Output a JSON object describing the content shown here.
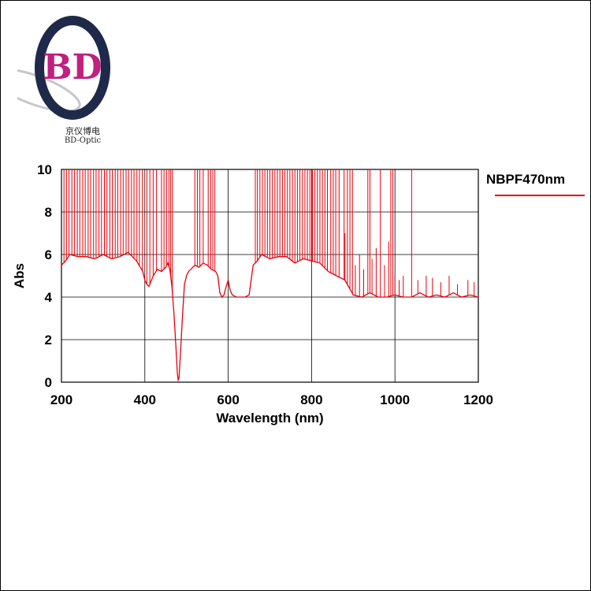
{
  "brand": {
    "logo_text": "BD",
    "name_cn": "京仪博电",
    "name_en": "BD-Optic"
  },
  "colors": {
    "series": "#e8000b",
    "grid": "#000000",
    "logo_ring": "#1f2a4a"
  },
  "chart_data": {
    "type": "line",
    "title": "",
    "xlabel": "Wavelength (nm)",
    "ylabel": "Abs",
    "xlim": [
      200,
      1200
    ],
    "ylim": [
      0,
      10
    ],
    "xticks": [
      "200",
      "400",
      "600",
      "800",
      "1000",
      "1200"
    ],
    "yticks": [
      "0",
      "2",
      "4",
      "6",
      "8",
      "10"
    ],
    "grid": true,
    "legend_position": "top-right",
    "series": [
      {
        "name": "NBPF470nm",
        "color": "#e8000b",
        "x": [
          200,
          210,
          220,
          240,
          260,
          280,
          300,
          320,
          340,
          360,
          380,
          395,
          400,
          405,
          410,
          420,
          430,
          440,
          450,
          455,
          460,
          465,
          470,
          475,
          478,
          480,
          482,
          485,
          490,
          495,
          500,
          505,
          510,
          520,
          530,
          540,
          550,
          560,
          570,
          575,
          580,
          585,
          590,
          595,
          600,
          605,
          610,
          620,
          630,
          640,
          650,
          655,
          660,
          670,
          680,
          700,
          720,
          740,
          760,
          780,
          800,
          820,
          840,
          860,
          880,
          900,
          920,
          940,
          960,
          980,
          1000,
          1020,
          1040,
          1060,
          1080,
          1100,
          1120,
          1140,
          1160,
          1180,
          1200
        ],
        "values": [
          5.5,
          5.7,
          6.0,
          5.9,
          5.9,
          5.8,
          6.0,
          5.8,
          5.9,
          6.1,
          5.7,
          5.2,
          4.8,
          4.6,
          4.5,
          5.0,
          5.3,
          5.2,
          5.4,
          5.6,
          5.3,
          4.5,
          3.2,
          1.5,
          0.4,
          0.1,
          0.2,
          1.2,
          3.0,
          4.6,
          5.0,
          5.2,
          5.3,
          5.5,
          5.4,
          5.6,
          5.5,
          5.3,
          5.2,
          5.0,
          4.2,
          4.0,
          4.1,
          4.5,
          4.8,
          4.3,
          4.1,
          4.0,
          4.0,
          4.0,
          4.1,
          4.8,
          5.5,
          5.7,
          6.0,
          5.8,
          5.9,
          5.9,
          5.6,
          5.8,
          5.7,
          5.6,
          5.2,
          5.0,
          4.8,
          4.1,
          4.0,
          4.2,
          4.0,
          4.0,
          4.1,
          4.0,
          4.0,
          4.2,
          4.0,
          4.1,
          4.0,
          4.2,
          4.0,
          4.1,
          4.0
        ],
        "spikes_to_10": [
          206,
          212,
          218,
          225,
          231,
          238,
          244,
          251,
          257,
          264,
          270,
          277,
          283,
          290,
          296,
          303,
          309,
          316,
          322,
          329,
          335,
          342,
          348,
          355,
          361,
          368,
          374,
          381,
          387,
          394,
          405,
          412,
          420,
          428,
          440,
          446,
          452,
          458,
          462,
          466,
          520,
          526,
          532,
          540,
          552,
          558,
          563,
          568,
          665,
          670,
          676,
          682,
          688,
          694,
          700,
          706,
          712,
          718,
          724,
          730,
          736,
          742,
          748,
          754,
          760,
          766,
          772,
          778,
          784,
          790,
          796,
          802,
          808,
          814,
          820,
          826,
          832,
          838,
          846,
          852,
          858,
          866,
          878,
          886,
          892,
          898,
          935,
          940,
          965,
          990,
          995,
          1040
        ],
        "spikes_partial": [
          [
            880,
            7.0
          ],
          [
            905,
            5.5
          ],
          [
            915,
            6.0
          ],
          [
            925,
            5.3
          ],
          [
            945,
            5.8
          ],
          [
            955,
            6.3
          ],
          [
            975,
            5.5
          ],
          [
            985,
            6.6
          ],
          [
            1000,
            5.0
          ],
          [
            1010,
            4.8
          ],
          [
            1020,
            5.0
          ],
          [
            1055,
            4.8
          ],
          [
            1075,
            5.0
          ],
          [
            1090,
            4.9
          ],
          [
            1110,
            4.7
          ],
          [
            1130,
            5.0
          ],
          [
            1150,
            4.6
          ],
          [
            1175,
            4.8
          ],
          [
            1190,
            4.7
          ]
        ]
      }
    ]
  }
}
